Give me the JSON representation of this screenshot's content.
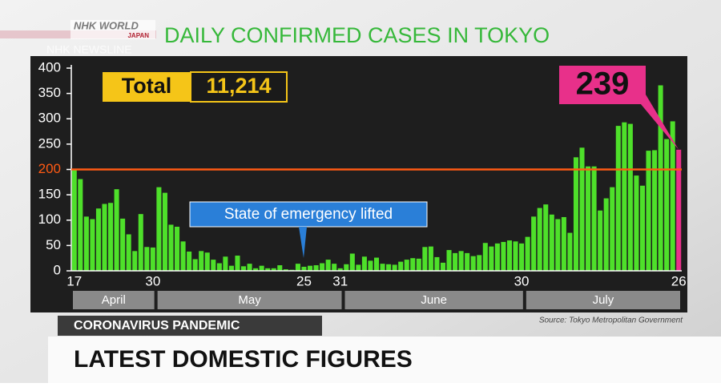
{
  "chart_data": {
    "type": "bar",
    "logo": "NHK WORLD",
    "logo_sub": "JAPAN",
    "show_name": "NHK NEWSLINE",
    "title": "DAILY CONFIRMED CASES IN TOKYO",
    "total": {
      "label": "Total",
      "value": 11214,
      "value_label": "11,214"
    },
    "annotation": "State of emergency lifted",
    "categories": [
      "17",
      null,
      null,
      null,
      null,
      null,
      null,
      null,
      null,
      null,
      null,
      null,
      null,
      "30",
      null,
      null,
      null,
      null,
      null,
      null,
      null,
      null,
      null,
      null,
      null,
      null,
      null,
      null,
      null,
      null,
      null,
      null,
      null,
      null,
      null,
      null,
      null,
      null,
      "25",
      null,
      null,
      null,
      null,
      null,
      "31",
      null,
      null,
      null,
      null,
      null,
      null,
      null,
      null,
      null,
      null,
      null,
      null,
      null,
      null,
      null,
      null,
      null,
      null,
      null,
      null,
      null,
      null,
      null,
      null,
      null,
      null,
      null,
      null,
      null,
      "30",
      null,
      null,
      null,
      null,
      null,
      null,
      null,
      null,
      null,
      null,
      null,
      null,
      null,
      null,
      null,
      null,
      null,
      null,
      null,
      null,
      null,
      null,
      null,
      null,
      null,
      "26"
    ],
    "months": [
      "April",
      "May",
      "June",
      "July"
    ],
    "values": [
      201,
      181,
      107,
      102,
      123,
      132,
      134,
      161,
      103,
      72,
      39,
      112,
      47,
      46,
      165,
      154,
      91,
      87,
      58,
      38,
      23,
      39,
      36,
      22,
      15,
      28,
      10,
      30,
      9,
      14,
      5,
      10,
      5,
      5,
      11,
      3,
      2,
      14,
      8,
      10,
      11,
      15,
      22,
      14,
      5,
      13,
      34,
      12,
      28,
      20,
      26,
      14,
      13,
      12,
      18,
      22,
      25,
      24,
      47,
      48,
      27,
      16,
      41,
      35,
      39,
      35,
      29,
      31,
      55,
      48,
      54,
      57,
      60,
      58,
      54,
      67,
      107,
      124,
      131,
      111,
      102,
      106,
      75,
      224,
      243,
      206,
      206,
      119,
      143,
      165,
      286,
      293,
      290,
      188,
      168,
      237,
      238,
      366,
      260,
      295,
      239
    ],
    "color": "#4ee02a",
    "highlight_color": "#e8308a",
    "reference_line": {
      "value": 200,
      "color": "#ff5a14"
    },
    "ylim": [
      0,
      400
    ],
    "yticks": [
      0,
      50,
      100,
      150,
      200,
      250,
      300,
      350,
      400
    ],
    "source": "Source: Tokyo Metropolitan Government",
    "section": "CORONAVIRUS PANDEMIC",
    "headline": "LATEST DOMESTIC FIGURES"
  }
}
